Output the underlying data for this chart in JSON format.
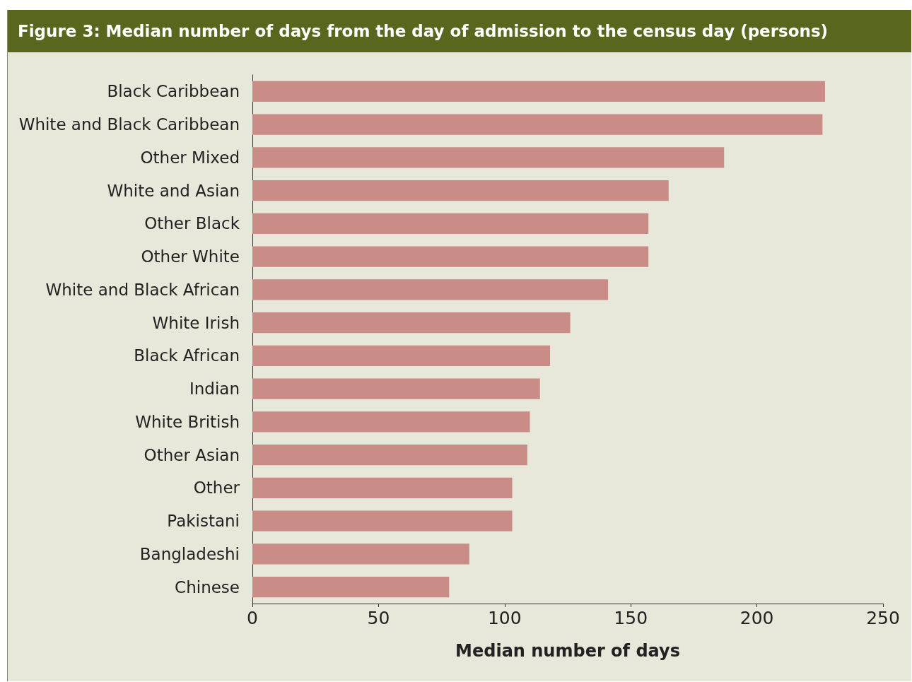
{
  "chart_data": {
    "type": "bar",
    "orientation": "horizontal",
    "title": "Figure 3: Median number of days from the day of admission to the census day (persons)",
    "xlabel": "Median number of days",
    "categories": [
      "Black Caribbean",
      "White and Black Caribbean",
      "Other Mixed",
      "White and Asian",
      "Other Black",
      "Other White",
      "White and Black African",
      "White Irish",
      "Black African",
      "Indian",
      "White British",
      "Other Asian",
      "Other",
      "Pakistani",
      "Bangladeshi",
      "Chinese"
    ],
    "values": [
      227,
      226,
      187,
      165,
      157,
      157,
      141,
      126,
      118,
      114,
      110,
      109,
      103,
      103,
      86,
      78
    ],
    "color": "#c98c86",
    "xlim": [
      0,
      250
    ],
    "xticks": [
      0,
      50,
      100,
      150,
      200,
      250
    ],
    "grid": false
  }
}
